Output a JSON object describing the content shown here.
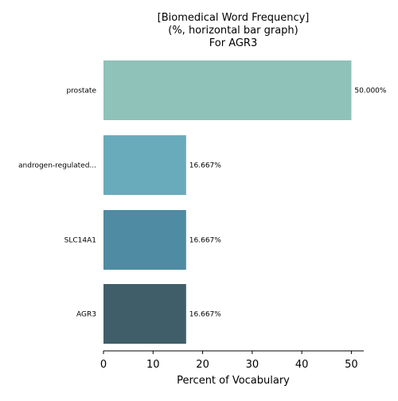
{
  "chart_data": {
    "type": "bar",
    "orientation": "horizontal",
    "title_lines": [
      "[Biomedical Word Frequency]",
      "(%, horizontal bar graph)",
      "For AGR3"
    ],
    "xlabel": "Percent of Vocabulary",
    "ylabel": "",
    "categories": [
      "prostate",
      "androgen-regulated...",
      "SLC14A1",
      "AGR3"
    ],
    "values": [
      50.0,
      16.667,
      16.667,
      16.667
    ],
    "value_labels": [
      "50.000%",
      "16.667%",
      "16.667%",
      "16.667%"
    ],
    "bar_colors": [
      "#8fc2b8",
      "#69abbb",
      "#4f8ba3",
      "#3f5e69"
    ],
    "x_ticks": [
      0,
      10,
      20,
      30,
      40,
      50
    ],
    "xlim": [
      0,
      52.5
    ],
    "grid": false,
    "legend": "none"
  }
}
